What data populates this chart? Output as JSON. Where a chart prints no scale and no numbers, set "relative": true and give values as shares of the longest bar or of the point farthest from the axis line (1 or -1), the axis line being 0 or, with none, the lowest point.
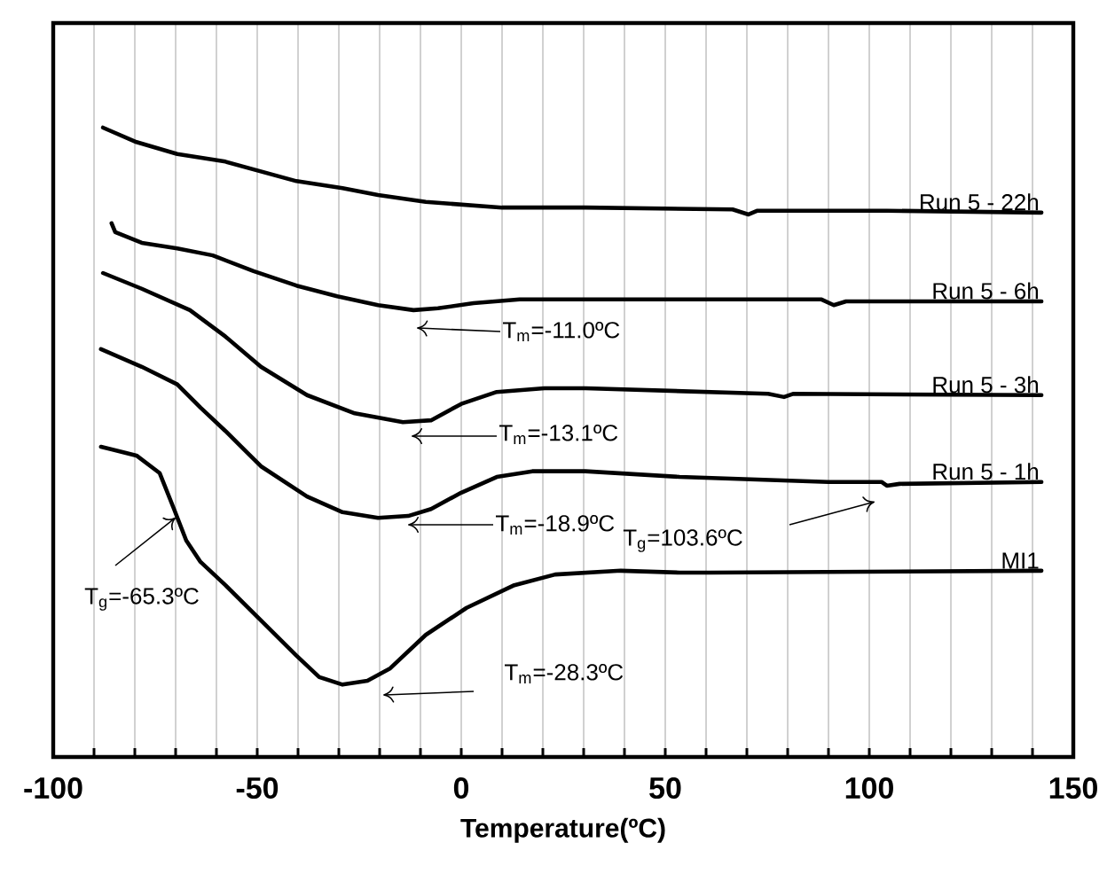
{
  "chart_data": {
    "type": "line",
    "relative": true,
    "xlabel": "Temperature(ºC)",
    "xlim": [
      -100,
      150
    ],
    "xticks": [
      -100,
      {
        "value": -90,
        "label": null
      },
      {
        "value": -80,
        "label": null
      },
      {
        "value": -70,
        "label": null
      },
      {
        "value": -60,
        "label": null
      },
      -50,
      {
        "value": -40,
        "label": null
      },
      {
        "value": -30,
        "label": null
      },
      {
        "value": -20,
        "label": null
      },
      {
        "value": -10,
        "label": null
      },
      0,
      {
        "value": 10,
        "label": null
      },
      {
        "value": 20,
        "label": null
      },
      {
        "value": 30,
        "label": null
      },
      {
        "value": 40,
        "label": null
      },
      50,
      {
        "value": 60,
        "label": null
      },
      {
        "value": 70,
        "label": null
      },
      {
        "value": 80,
        "label": null
      },
      {
        "value": 90,
        "label": null
      },
      100,
      {
        "value": 110,
        "label": null
      },
      {
        "value": 120,
        "label": null
      },
      {
        "value": 130,
        "label": null
      },
      {
        "value": 140,
        "label": null
      },
      150
    ],
    "grid": "x",
    "marker": "none",
    "line_style": "solid",
    "series": [
      {
        "name": "Run 5 - 22h",
        "color": "#000000",
        "x": [
          -87.8,
          -79.6,
          -69.6,
          -57.8,
          -40.4,
          -29.1,
          -20.4,
          -8.7,
          10,
          30.4,
          66.5,
          70.4,
          72.6,
          104.3,
          142.2
        ],
        "values": [
          1.0,
          0.977,
          0.958,
          0.946,
          0.915,
          0.904,
          0.893,
          0.882,
          0.873,
          0.873,
          0.87,
          0.862,
          0.868,
          0.868,
          0.865
        ]
      },
      {
        "name": "Run 5 - 6h",
        "color": "#000000",
        "x": [
          -85.7,
          -84.8,
          -78.3,
          -69.6,
          -60.9,
          -50.9,
          -40.4,
          -30.4,
          -20.4,
          -11.7,
          -5.7,
          3.0,
          14.3,
          30.4,
          88.3,
          91.3,
          94.3,
          142.2
        ],
        "values": [
          0.848,
          0.834,
          0.817,
          0.808,
          0.797,
          0.772,
          0.749,
          0.732,
          0.718,
          0.71,
          0.713,
          0.721,
          0.727,
          0.727,
          0.727,
          0.718,
          0.724,
          0.724
        ]
      },
      {
        "name": "Run 5 - 3h",
        "color": "#000000",
        "x": [
          -87.8,
          -78.3,
          -66.5,
          -57.8,
          -49.1,
          -37.8,
          -26.1,
          -14.3,
          -7.4,
          0,
          8.7,
          20.4,
          30.4,
          75.2,
          79.1,
          81.3,
          142.2
        ],
        "values": [
          0.769,
          0.744,
          0.71,
          0.668,
          0.62,
          0.575,
          0.546,
          0.532,
          0.535,
          0.561,
          0.58,
          0.586,
          0.586,
          0.577,
          0.572,
          0.577,
          0.575
        ]
      },
      {
        "name": "Run 5 - 1h",
        "color": "#000000",
        "x": [
          -88.3,
          -78.3,
          -69.6,
          -63.9,
          -57.8,
          -49.1,
          -37.8,
          -29.1,
          -20.4,
          -13.0,
          -7.4,
          0,
          8.7,
          17.4,
          30.4,
          53.5,
          90,
          103,
          104.3,
          107.4,
          142.2
        ],
        "values": [
          0.648,
          0.62,
          0.592,
          0.555,
          0.518,
          0.462,
          0.414,
          0.389,
          0.38,
          0.383,
          0.394,
          0.42,
          0.445,
          0.454,
          0.454,
          0.445,
          0.437,
          0.437,
          0.431,
          0.434,
          0.437
        ]
      },
      {
        "name": "MI1",
        "color": "#000000",
        "x": [
          -88.3,
          -79.6,
          -73.9,
          -70.4,
          -67.4,
          -63.9,
          -57.8,
          -49.1,
          -40.4,
          -34.8,
          -29.1,
          -23.0,
          -17.4,
          -8.7,
          1.3,
          13.0,
          23.0,
          39.1,
          53.5,
          60.9,
          142.2
        ],
        "values": [
          0.493,
          0.479,
          0.451,
          0.394,
          0.344,
          0.31,
          0.273,
          0.217,
          0.161,
          0.127,
          0.115,
          0.121,
          0.141,
          0.194,
          0.237,
          0.273,
          0.29,
          0.296,
          0.293,
          0.293,
          0.296
        ]
      }
    ],
    "annotations": [
      "T$_{m}$=-11.0ºC",
      "T$_{m}$=-13.1ºC",
      "T$_{m}$=-18.9ºC",
      "T$_{m}$=-28.3ºC",
      "T$_{g}$=-65.3ºC",
      "T$_{g}$=103.6ºC"
    ]
  }
}
